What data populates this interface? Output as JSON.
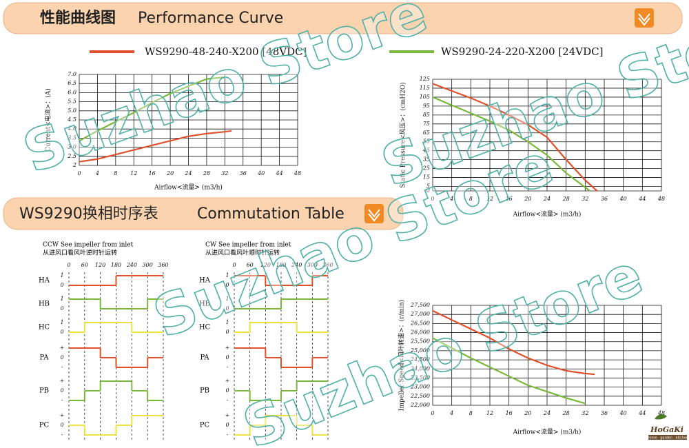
{
  "header1": {
    "title_cn": "性能曲线图",
    "title_en": "Performance Curve"
  },
  "chart_data": [
    {
      "type": "line",
      "x_label": "Airflow<流量> (m3/h)",
      "y_label": "Current<电流>：(A)",
      "xlim": [
        0,
        48
      ],
      "xticks": [
        0,
        4,
        8,
        12,
        16,
        20,
        24,
        28,
        32,
        36,
        40,
        44,
        48
      ],
      "ylim": [
        2,
        7
      ],
      "yticks": [
        2,
        2.5,
        {
          "value": 3,
          "label": "3.0"
        },
        3.5,
        {
          "value": 4,
          "label": "4.0"
        },
        4.5,
        {
          "value": 5,
          "label": "5.0"
        },
        5.5,
        {
          "value": 6,
          "label": "6.0"
        },
        6.5,
        {
          "value": 7,
          "label": "7.0"
        }
      ],
      "grid": true,
      "series": [
        {
          "name": "WS9290-48-240-X200 [48VDC]",
          "color": "#e0502a",
          "x": [
            0,
            4,
            8,
            12,
            16,
            20,
            24,
            28,
            32,
            33.5
          ],
          "values": [
            2.2,
            2.35,
            2.6,
            2.85,
            3.1,
            3.35,
            3.6,
            3.75,
            3.85,
            3.9
          ]
        },
        {
          "name": "WS9290-24-220-X200 [24VDC]",
          "color": "#7ab83a",
          "x": [
            0,
            4,
            8,
            12,
            16,
            20,
            24,
            28,
            32
          ],
          "values": [
            3.35,
            3.9,
            4.4,
            4.9,
            5.45,
            5.95,
            6.35,
            6.75,
            6.85
          ]
        }
      ]
    },
    {
      "type": "line",
      "x_label": "Airflow<流量> (m3/h)",
      "y_label": "Static Pressure<风压>：(cmH2O)",
      "xlim": [
        0,
        48
      ],
      "xticks": [
        0,
        4,
        8,
        12,
        16,
        20,
        24,
        28,
        32,
        36,
        40,
        44,
        48
      ],
      "ylim": [
        0,
        125
      ],
      "yticks": [
        0,
        5,
        15,
        25,
        35,
        45,
        55,
        65,
        75,
        85,
        95,
        105,
        115,
        125
      ],
      "grid": true,
      "series": [
        {
          "name": "WS9290-48-240-X200 [48VDC]",
          "color": "#e0502a",
          "x": [
            0,
            4,
            8,
            12,
            16,
            20,
            24,
            28,
            32,
            34.5
          ],
          "values": [
            120,
            112,
            104,
            95,
            85,
            74,
            60,
            35,
            12,
            0
          ]
        },
        {
          "name": "WS9290-24-220-X200 [24VDC]",
          "color": "#7ab83a",
          "x": [
            0,
            4,
            8,
            12,
            16,
            20,
            24,
            28,
            32,
            33
          ],
          "values": [
            105,
            96,
            87,
            78,
            68,
            55,
            40,
            20,
            4,
            0
          ]
        }
      ]
    },
    {
      "type": "line",
      "x_label": "Airflow<流量> (m3/h)",
      "y_label": "Impeller Speed<风叶转速>：(r/min)",
      "xlim": [
        0,
        48
      ],
      "xticks": [
        0,
        4,
        8,
        12,
        16,
        20,
        24,
        28,
        32,
        36,
        40,
        44,
        48
      ],
      "ylim": [
        22000,
        27500
      ],
      "yticks": [
        {
          "value": 22000,
          "label": "22,000"
        },
        {
          "value": 22500,
          "label": "22,500"
        },
        {
          "value": 23000,
          "label": "23,000"
        },
        {
          "value": 23500,
          "label": "23,500"
        },
        {
          "value": 24000,
          "label": "24,000"
        },
        {
          "value": 24500,
          "label": "24,500"
        },
        {
          "value": 25000,
          "label": "25,000"
        },
        {
          "value": 25500,
          "label": "25,500"
        },
        {
          "value": 26000,
          "label": "26,000"
        },
        {
          "value": 26500,
          "label": "26,500"
        },
        {
          "value": 27000,
          "label": "27,000"
        },
        {
          "value": 27500,
          "label": "27,500"
        }
      ],
      "grid": true,
      "series": [
        {
          "name": "WS9290-48-240-X200 [48VDC]",
          "color": "#e0502a",
          "x": [
            0,
            4,
            8,
            12,
            16,
            20,
            24,
            28,
            32,
            34
          ],
          "values": [
            27200,
            26700,
            26200,
            25700,
            25100,
            24600,
            24200,
            23900,
            23750,
            23700
          ]
        },
        {
          "name": "WS9290-24-220-X200 [24VDC]",
          "color": "#7ab83a",
          "x": [
            0,
            4,
            8,
            12,
            16,
            20,
            24,
            28,
            32
          ],
          "values": [
            25700,
            25150,
            24600,
            24100,
            23600,
            23100,
            22750,
            22400,
            22100
          ]
        }
      ]
    }
  ],
  "header2": {
    "title_cn": "WS9290换相时序表",
    "title_en": "Commutation Table"
  },
  "commutation": {
    "angles": [
      0,
      60,
      120,
      180,
      240,
      300,
      360
    ],
    "hall_levels": [
      "1",
      "0"
    ],
    "phase_levels": [
      "+",
      "0",
      "-"
    ],
    "panels": [
      {
        "title": "CCW See impeller from inlet",
        "subtitle": "从进风口看风叶逆时针运转",
        "rows": [
          {
            "name": "HA",
            "kind": "hall",
            "color": "#e0502a",
            "levels": [
              0,
              0,
              0,
              1,
              1,
              1
            ]
          },
          {
            "name": "HB",
            "kind": "hall",
            "color": "#7ab83a",
            "levels": [
              1,
              1,
              0,
              0,
              0,
              1
            ]
          },
          {
            "name": "HC",
            "kind": "hall",
            "color": "#ece23a",
            "levels": [
              0,
              1,
              1,
              1,
              0,
              0
            ]
          },
          {
            "name": "PA",
            "kind": "phase",
            "color": "#e0502a",
            "levels": [
              1,
              1,
              0,
              -1,
              -1,
              0
            ]
          },
          {
            "name": "PB",
            "kind": "phase",
            "color": "#7ab83a",
            "levels": [
              -1,
              0,
              1,
              1,
              0,
              -1
            ]
          },
          {
            "name": "PC",
            "kind": "phase",
            "color": "#ece23a",
            "levels": [
              0,
              -1,
              -1,
              0,
              1,
              1
            ]
          }
        ]
      },
      {
        "title": "CW See impeller from inlet",
        "subtitle": "从进风口看风叶顺时针运转",
        "rows": [
          {
            "name": "HA",
            "kind": "hall",
            "color": "#e0502a",
            "levels": [
              1,
              1,
              0,
              0,
              0,
              1
            ]
          },
          {
            "name": "HB",
            "kind": "hall",
            "color": "#7ab83a",
            "levels": [
              0,
              0,
              0,
              1,
              1,
              1
            ]
          },
          {
            "name": "HC",
            "kind": "hall",
            "color": "#ece23a",
            "levels": [
              0,
              1,
              1,
              1,
              0,
              0
            ]
          },
          {
            "name": "PA",
            "kind": "phase",
            "color": "#e0502a",
            "levels": [
              1,
              1,
              0,
              -1,
              -1,
              0
            ]
          },
          {
            "name": "PB",
            "kind": "phase",
            "color": "#7ab83a",
            "levels": [
              0,
              -1,
              -1,
              0,
              1,
              1
            ]
          },
          {
            "name": "PC",
            "kind": "phase",
            "color": "#ece23a",
            "levels": [
              -1,
              0,
              1,
              1,
              0,
              -1
            ]
          }
        ]
      }
    ]
  },
  "watermark": "Suzhao Store",
  "logo": {
    "name": "HoGaKi",
    "tagline": "Home · garden · kitchen"
  }
}
